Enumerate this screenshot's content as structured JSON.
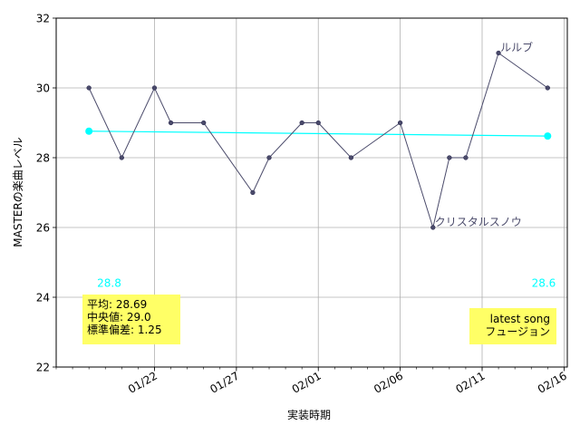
{
  "chart_data": {
    "type": "line",
    "xlabel": "実装時期",
    "ylabel": "MASTERの楽曲レベル",
    "ylim": [
      22,
      32
    ],
    "yticks": [
      22,
      24,
      26,
      28,
      30,
      32
    ],
    "xlim": [
      "2024-01-16",
      "2024-02-16"
    ],
    "xticks": [
      {
        "date": "2024-01-22",
        "label": "01/22"
      },
      {
        "date": "2024-01-27",
        "label": "01/27"
      },
      {
        "date": "2024-02-01",
        "label": "02/01"
      },
      {
        "date": "2024-02-06",
        "label": "02/06"
      },
      {
        "date": "2024-02-11",
        "label": "02/11"
      },
      {
        "date": "2024-02-16",
        "label": "02/16"
      }
    ],
    "grid": true,
    "series": [
      {
        "values": [
          {
            "x": "2024-01-18",
            "y": 30
          },
          {
            "x": "2024-01-20",
            "y": 28
          },
          {
            "x": "2024-01-22",
            "y": 30
          },
          {
            "x": "2024-01-23",
            "y": 29
          },
          {
            "x": "2024-01-25",
            "y": 29
          },
          {
            "x": "2024-01-28",
            "y": 27
          },
          {
            "x": "2024-01-29",
            "y": 28
          },
          {
            "x": "2024-01-31",
            "y": 29
          },
          {
            "x": "2024-02-01",
            "y": 29
          },
          {
            "x": "2024-02-03",
            "y": 28
          },
          {
            "x": "2024-02-06",
            "y": 29
          },
          {
            "x": "2024-02-08",
            "y": 26
          },
          {
            "x": "2024-02-09",
            "y": 28
          },
          {
            "x": "2024-02-10",
            "y": 28
          },
          {
            "x": "2024-02-12",
            "y": 31
          },
          {
            "x": "2024-02-15",
            "y": 30
          }
        ],
        "color": "#4a4a6a"
      }
    ],
    "trend": {
      "start": {
        "x": "2024-01-18",
        "y": 28.76
      },
      "end": {
        "x": "2024-02-15",
        "y": 28.62
      },
      "start_label": "28.8",
      "end_label": "28.6",
      "color": "#00ffff"
    },
    "annotations": [
      {
        "text": "ルルブ",
        "x": "2024-02-12",
        "y": 31
      },
      {
        "text": "クリスタルスノウ",
        "x": "2024-02-08",
        "y": 26
      }
    ],
    "stats_box": {
      "lines": [
        "平均: 28.69",
        "中央値: 29.0",
        "標準偏差:  1.25"
      ],
      "background": "#ffff66"
    },
    "latest_box": {
      "lines": [
        "latest song",
        "フュージョン"
      ],
      "background": "#ffff66"
    }
  }
}
